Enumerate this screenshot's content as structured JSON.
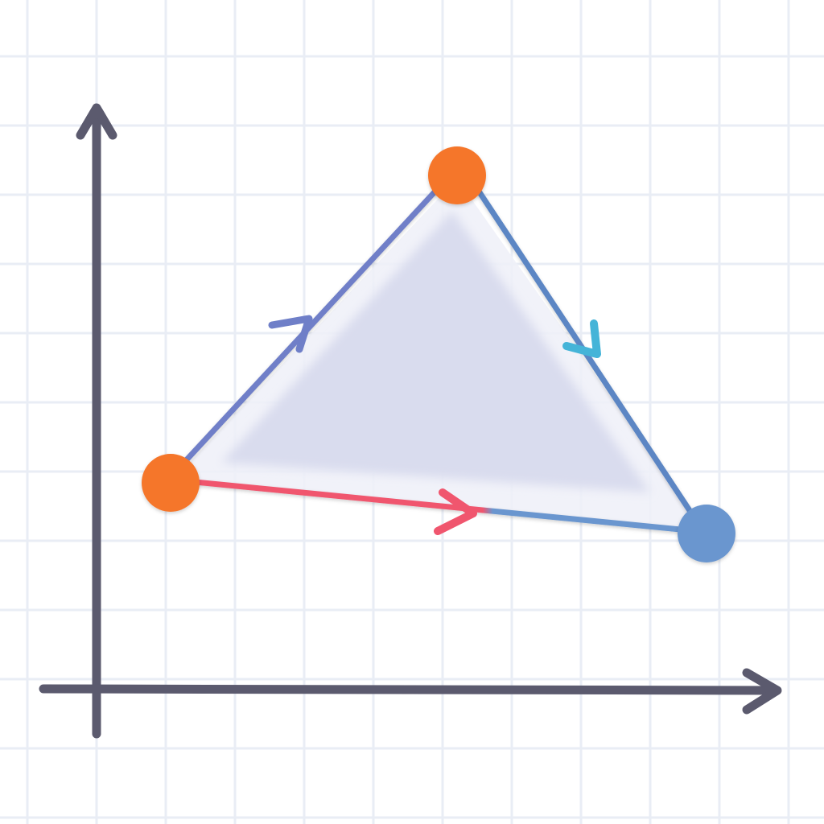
{
  "colors": {
    "background": "#ffffff",
    "grid": "#e9edf5",
    "axis": "#5b5a6e",
    "triangle_fill": "#d9dcee",
    "triangle_halo": "#eef0f8",
    "edge_left": "#6f7fc8",
    "edge_right": "#5b86c4",
    "edge_bottom_start": "#f0566e",
    "edge_bottom_end": "#6a96cf",
    "arrow_left": "#6f7fc8",
    "arrow_right": "#45b4d8",
    "arrow_bottom": "#f0566e",
    "vertex_orange": "#f5762c",
    "vertex_blue": "#6a96cf"
  },
  "diagram": {
    "type": "triangle-cycle-on-axes",
    "vertices": [
      {
        "id": "top",
        "color_key": "vertex_orange"
      },
      {
        "id": "left",
        "color_key": "vertex_orange"
      },
      {
        "id": "right",
        "color_key": "vertex_blue"
      }
    ],
    "edges": [
      {
        "from": "left",
        "to": "top",
        "direction_arrow": true
      },
      {
        "from": "top",
        "to": "right",
        "direction_arrow": true
      },
      {
        "from": "left",
        "to": "right",
        "direction_arrow": true
      }
    ],
    "axes": {
      "x_arrow": true,
      "y_arrow": true
    },
    "grid": true
  }
}
